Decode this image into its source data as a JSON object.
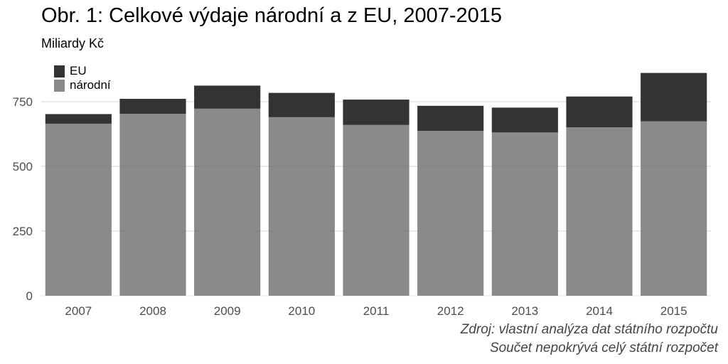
{
  "chart_data": {
    "type": "bar",
    "stacked": true,
    "title": "Obr. 1: Celkové výdaje národní a z EU, 2007-2015",
    "subtitle": "Miliardy Kč",
    "xlabel": "",
    "ylabel": "",
    "categories": [
      "2007",
      "2008",
      "2009",
      "2010",
      "2011",
      "2012",
      "2013",
      "2014",
      "2015"
    ],
    "series": [
      {
        "name": "národní",
        "color": "#8a8a8a",
        "values": [
          665,
          703,
          723,
          690,
          660,
          637,
          631,
          651,
          674
        ]
      },
      {
        "name": "EU",
        "color": "#333333",
        "values": [
          37,
          58,
          89,
          94,
          98,
          97,
          96,
          119,
          187
        ]
      }
    ],
    "ylim": [
      0,
      900
    ],
    "yticks": [
      0,
      250,
      500,
      750
    ],
    "grid": true,
    "legend": {
      "position": "top-left",
      "items": [
        "EU",
        "národní"
      ]
    },
    "caption": [
      "Zdroj: vlastní analýza dat státního rozpočtu",
      "Součet nepokrývá celý státní rozpočet"
    ]
  }
}
